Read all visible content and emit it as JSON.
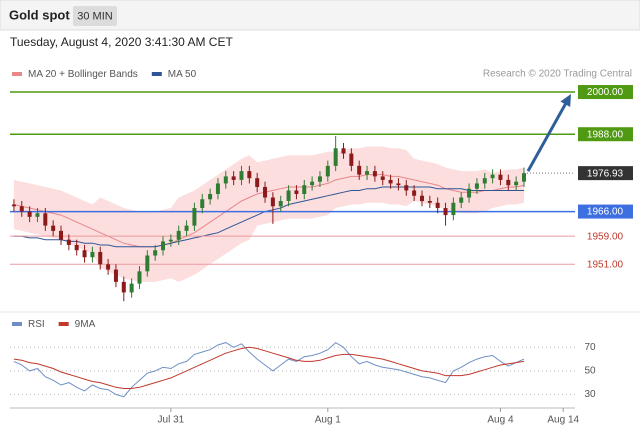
{
  "header": {
    "title": "Gold spot",
    "timeframe": "30 MIN",
    "timestamp": "Tuesday, August 4, 2020 3:41:30 AM CET"
  },
  "chart_data": [
    {
      "type": "candlestick",
      "source": "Research © 2020 Trading Central",
      "ylim": [
        1938,
        2002
      ],
      "up_color": "#2e7d32",
      "down_color": "#8b1a1a",
      "open": [
        1968.0,
        1967.5,
        1966.0,
        1964.5,
        1965.5,
        1962.0,
        1960.5,
        1958.0,
        1956.5,
        1955.0,
        1953.0,
        1954.5,
        1951.0,
        1949.5,
        1946.0,
        1943.0,
        1945.5,
        1949.0,
        1953.5,
        1955.0,
        1957.5,
        1958.0,
        1960.5,
        1962.0,
        1967.0,
        1969.5,
        1971.0,
        1974.0,
        1976.0,
        1975.0,
        1977.5,
        1975.5,
        1973.0,
        1970.0,
        1967.5,
        1969.0,
        1972.0,
        1971.0,
        1973.5,
        1974.5,
        1976.0,
        1979.0,
        1984.0,
        1982.5,
        1979.0,
        1976.5,
        1977.5,
        1976.0,
        1975.0,
        1974.0,
        1973.5,
        1972.0,
        1970.5,
        1969.0,
        1968.5,
        1967.0,
        1965.0,
        1968.5,
        1970.0,
        1972.5,
        1974.0,
        1975.5,
        1976.5,
        1975.0,
        1973.5,
        1974.5
      ],
      "high": [
        1969.5,
        1969.0,
        1967.5,
        1967.0,
        1967.0,
        1963.5,
        1962.0,
        1959.5,
        1958.0,
        1956.5,
        1956.0,
        1956.0,
        1952.5,
        1951.0,
        1947.5,
        1947.0,
        1950.5,
        1955.0,
        1956.5,
        1959.0,
        1959.5,
        1962.0,
        1963.5,
        1968.5,
        1971.0,
        1972.5,
        1975.5,
        1977.5,
        1977.5,
        1979.0,
        1979.0,
        1977.0,
        1974.5,
        1971.5,
        1970.5,
        1973.5,
        1973.5,
        1975.0,
        1976.0,
        1977.5,
        1980.5,
        1987.5,
        1985.5,
        1984.0,
        1980.5,
        1979.0,
        1979.0,
        1977.5,
        1976.5,
        1975.5,
        1975.0,
        1973.5,
        1972.0,
        1970.5,
        1970.0,
        1968.5,
        1970.0,
        1971.5,
        1974.0,
        1975.5,
        1977.0,
        1978.0,
        1978.0,
        1976.5,
        1976.0,
        1978.5
      ],
      "low": [
        1966.0,
        1964.5,
        1963.0,
        1963.0,
        1960.5,
        1959.0,
        1956.5,
        1955.0,
        1953.5,
        1951.5,
        1951.5,
        1949.5,
        1948.0,
        1944.5,
        1940.5,
        1941.5,
        1944.0,
        1947.5,
        1952.0,
        1953.5,
        1956.0,
        1956.5,
        1959.0,
        1960.5,
        1965.5,
        1968.0,
        1969.5,
        1972.5,
        1973.5,
        1973.5,
        1974.0,
        1971.5,
        1968.5,
        1962.5,
        1966.0,
        1967.5,
        1969.5,
        1969.5,
        1972.0,
        1973.0,
        1974.5,
        1977.5,
        1981.0,
        1977.5,
        1975.0,
        1975.0,
        1974.5,
        1973.5,
        1972.5,
        1972.0,
        1970.5,
        1969.0,
        1967.5,
        1967.0,
        1965.5,
        1962.0,
        1963.5,
        1967.0,
        1968.5,
        1971.0,
        1972.5,
        1974.0,
        1973.5,
        1972.0,
        1972.0,
        1973.0
      ],
      "close": [
        1967.5,
        1966.0,
        1964.5,
        1965.5,
        1962.0,
        1960.5,
        1958.0,
        1956.5,
        1955.0,
        1953.0,
        1954.5,
        1951.0,
        1949.5,
        1946.0,
        1943.0,
        1945.5,
        1949.0,
        1953.5,
        1955.0,
        1957.5,
        1958.0,
        1960.5,
        1962.0,
        1967.0,
        1969.5,
        1971.0,
        1974.0,
        1976.0,
        1975.0,
        1977.5,
        1975.5,
        1973.0,
        1970.0,
        1967.5,
        1969.0,
        1972.0,
        1971.0,
        1973.5,
        1974.5,
        1976.0,
        1979.0,
        1984.0,
        1982.5,
        1979.0,
        1976.5,
        1977.5,
        1976.0,
        1975.0,
        1974.0,
        1973.5,
        1972.0,
        1970.5,
        1969.0,
        1968.5,
        1967.0,
        1965.0,
        1968.5,
        1970.0,
        1972.5,
        1974.0,
        1975.5,
        1976.5,
        1975.0,
        1973.5,
        1974.5,
        1976.93
      ],
      "series": [
        {
          "name": "MA 20 + Bollinger Bands",
          "color": "#e8868a",
          "band_color": "#fbd3d3",
          "values": [
            1968,
            1967.5,
            1967,
            1966.5,
            1966,
            1965.5,
            1965,
            1964,
            1963,
            1962,
            1961,
            1960,
            1959,
            1958,
            1957,
            1956.5,
            1956,
            1956,
            1956,
            1956.5,
            1957,
            1958,
            1959,
            1960,
            1961.5,
            1963,
            1964.5,
            1966,
            1967.5,
            1969,
            1970,
            1971,
            1971.5,
            1972,
            1972.5,
            1973,
            1973,
            1973,
            1973,
            1973.5,
            1974,
            1975,
            1975.5,
            1976,
            1976,
            1976.5,
            1976.5,
            1976.5,
            1976,
            1976,
            1975.5,
            1975,
            1974.5,
            1974,
            1973.5,
            1972.5,
            1972,
            1971.5,
            1971.5,
            1971.5,
            1972,
            1972,
            1972.5,
            1973,
            1973,
            1973.5
          ],
          "upper": [
            1975,
            1974.5,
            1974,
            1973.5,
            1973,
            1972.5,
            1972,
            1971,
            1970,
            1969,
            1968,
            1970,
            1969,
            1968,
            1967,
            1966.5,
            1966,
            1966,
            1966,
            1966.5,
            1967,
            1970,
            1971,
            1972,
            1973.5,
            1975,
            1976.5,
            1978,
            1979.5,
            1981,
            1982,
            1980,
            1980.5,
            1981,
            1981.5,
            1982,
            1982,
            1982,
            1982,
            1982.5,
            1983,
            1983,
            1983.5,
            1984,
            1984,
            1984.5,
            1984.5,
            1984.5,
            1984,
            1984,
            1983.5,
            1981,
            1980.5,
            1980,
            1979.5,
            1978.5,
            1978,
            1977.5,
            1977.5,
            1977.5,
            1978,
            1977,
            1977.5,
            1978,
            1978,
            1978.5
          ],
          "lower": [
            1961,
            1960.5,
            1960,
            1959.5,
            1959,
            1958.5,
            1958,
            1957,
            1956,
            1955,
            1954,
            1950,
            1949,
            1948,
            1947,
            1946.5,
            1946,
            1946,
            1946,
            1946.5,
            1947,
            1946,
            1947,
            1948,
            1949.5,
            1951,
            1952.5,
            1954,
            1955.5,
            1957,
            1958,
            1962,
            1962.5,
            1963,
            1963.5,
            1964,
            1964,
            1964,
            1964,
            1964.5,
            1965,
            1967,
            1967.5,
            1968,
            1968,
            1968.5,
            1968.5,
            1968.5,
            1968,
            1968,
            1967.5,
            1969,
            1968.5,
            1968,
            1967.5,
            1966.5,
            1966,
            1965.5,
            1965.5,
            1965.5,
            1966,
            1967,
            1967.5,
            1968,
            1968,
            1968.5
          ]
        },
        {
          "name": "MA 50",
          "color": "#2f5597",
          "values": [
            1959,
            1959,
            1958.5,
            1958.5,
            1958,
            1958,
            1958,
            1957.5,
            1957.5,
            1957,
            1957,
            1956.5,
            1956.5,
            1956,
            1956,
            1956,
            1956,
            1956,
            1956,
            1956.5,
            1957,
            1957.5,
            1958,
            1958.5,
            1959,
            1959.5,
            1960,
            1961,
            1962,
            1963,
            1964,
            1965,
            1966,
            1966.5,
            1967,
            1968,
            1968.5,
            1969,
            1969.5,
            1970,
            1970.5,
            1971,
            1971.5,
            1972,
            1972,
            1972.5,
            1972.5,
            1973,
            1973,
            1973,
            1973,
            1973,
            1973,
            1973,
            1972.5,
            1972.5,
            1972.5,
            1972.5,
            1972,
            1972,
            1972,
            1972,
            1972,
            1972,
            1972,
            1972
          ]
        }
      ],
      "levels": [
        {
          "value": 2000,
          "label": "2000.00",
          "color": "#4f9a12",
          "style": "filled"
        },
        {
          "value": 1988,
          "label": "1988.00",
          "color": "#4f9a12",
          "style": "filled"
        },
        {
          "value": 1966,
          "label": "1966.00",
          "color": "#3d6fe0",
          "style": "filled"
        },
        {
          "value": 1959,
          "label": "1959.00",
          "color": "#e99aa0",
          "style": "text"
        },
        {
          "value": 1951,
          "label": "1951.00",
          "color": "#e99aa0",
          "style": "text"
        }
      ],
      "target": 2000
    },
    {
      "type": "line",
      "ylim": [
        21,
        83
      ],
      "yticks": [
        30,
        50,
        70
      ],
      "grid": true,
      "categories": [
        null,
        null,
        null,
        null,
        null,
        null,
        null,
        null,
        null,
        null,
        null,
        null,
        null,
        null,
        null,
        null,
        null,
        null,
        null,
        null,
        "Jul 31",
        null,
        null,
        null,
        null,
        null,
        null,
        null,
        null,
        null,
        null,
        null,
        null,
        null,
        null,
        null,
        null,
        null,
        null,
        null,
        "Aug 1",
        null,
        null,
        null,
        null,
        null,
        null,
        null,
        null,
        null,
        null,
        null,
        null,
        null,
        null,
        null,
        null,
        null,
        null,
        null,
        null,
        null,
        "Aug 4",
        null,
        null,
        null,
        null,
        null,
        null,
        null,
        "Aug 14",
        null
      ],
      "series": [
        {
          "name": "RSI",
          "color": "#6f8fc4",
          "values": [
            58,
            55,
            50,
            52,
            45,
            42,
            38,
            40,
            36,
            33,
            38,
            35,
            34,
            30,
            28,
            36,
            42,
            48,
            50,
            53,
            52,
            56,
            58,
            64,
            66,
            68,
            72,
            74,
            70,
            73,
            66,
            60,
            55,
            50,
            55,
            60,
            58,
            62,
            63,
            65,
            68,
            74,
            70,
            62,
            56,
            58,
            55,
            53,
            52,
            51,
            49,
            47,
            45,
            44,
            42,
            40,
            50,
            53,
            57,
            60,
            62,
            63,
            58,
            54,
            57,
            60,
            null,
            null,
            null,
            null,
            null,
            null
          ]
        },
        {
          "name": "9MA",
          "color": "#c0392b",
          "values": [
            60,
            59,
            57,
            56,
            54,
            52,
            49,
            47,
            45,
            43,
            41,
            40,
            38,
            36,
            35,
            35,
            36,
            38,
            40,
            42,
            44,
            47,
            50,
            53,
            56,
            59,
            62,
            65,
            67,
            69,
            70,
            69,
            67,
            65,
            63,
            61,
            59,
            58,
            58,
            59,
            61,
            63,
            64,
            64,
            63,
            62,
            61,
            60,
            58,
            56,
            54,
            52,
            50,
            49,
            48,
            46,
            46,
            46,
            47,
            49,
            51,
            53,
            55,
            56,
            57,
            58,
            null,
            null,
            null,
            null,
            null,
            null
          ]
        }
      ]
    }
  ]
}
